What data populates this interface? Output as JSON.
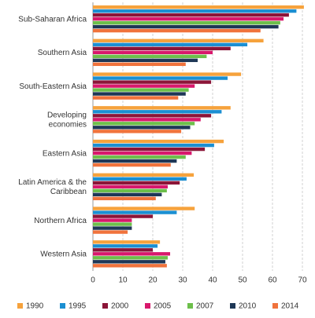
{
  "chart_data": {
    "type": "hbar",
    "categories": [
      "Sub-Saharan Africa",
      "Southern Asia",
      "South-Eastern Asia",
      "Developing economies",
      "Eastern Asia",
      "Latin America & the Caribbean",
      "Northern Africa",
      "Western Asia"
    ],
    "series": [
      {
        "name": "1990",
        "color": "#f6a23c",
        "values": [
          70.5,
          57,
          49.5,
          46,
          43.7,
          33.7,
          34,
          22.4
        ]
      },
      {
        "name": "1995",
        "color": "#1b8fd2",
        "values": [
          68,
          51.6,
          45,
          43,
          40.5,
          31.3,
          28,
          21.6
        ]
      },
      {
        "name": "2000",
        "color": "#8b1538",
        "values": [
          65.5,
          46,
          39.5,
          39.5,
          37.4,
          29,
          20,
          20
        ]
      },
      {
        "name": "2005",
        "color": "#d8186c",
        "values": [
          63.7,
          40,
          34,
          36,
          33,
          25,
          13,
          25.8
        ]
      },
      {
        "name": "2007",
        "color": "#6dbf4b",
        "values": [
          62.6,
          38,
          32,
          34,
          31,
          24.7,
          13,
          25
        ]
      },
      {
        "name": "2010",
        "color": "#1e3756",
        "values": [
          62,
          35,
          31,
          32.5,
          28,
          23,
          13,
          24.2
        ]
      },
      {
        "name": "2014",
        "color": "#f0733c",
        "values": [
          56,
          31,
          28.5,
          29.5,
          26,
          21,
          11.6,
          24.7
        ]
      }
    ],
    "xlim": [
      0,
      70
    ],
    "xticks": [
      0,
      10,
      20,
      30,
      40,
      50,
      60,
      70
    ],
    "grid": true,
    "legend": "bottom"
  }
}
